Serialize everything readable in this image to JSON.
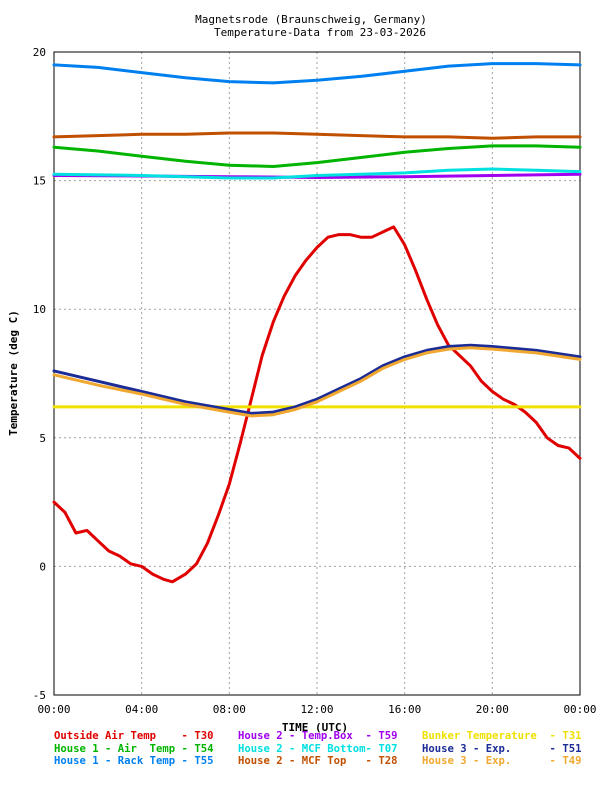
{
  "chart_data": {
    "type": "line",
    "title_lines": [
      "Magnetsrode (Braunschweig, Germany)",
      "Temperature-Data from 23-03-2026"
    ],
    "xlabel": "TIME (UTC)",
    "ylabel": "Temperature (deg C)",
    "xlim": [
      0,
      24
    ],
    "ylim": [
      -5,
      20
    ],
    "grid": true,
    "legend_position": "bottom",
    "x_ticks": [
      {
        "value": 0,
        "label": "00:00"
      },
      {
        "value": 4,
        "label": "04:00"
      },
      {
        "value": 8,
        "label": "08:00"
      },
      {
        "value": 12,
        "label": "12:00"
      },
      {
        "value": 16,
        "label": "16:00"
      },
      {
        "value": 20,
        "label": "20:00"
      },
      {
        "value": 24,
        "label": "00:00"
      }
    ],
    "y_ticks": [
      {
        "value": -5,
        "label": "-5"
      },
      {
        "value": 0,
        "label": "0"
      },
      {
        "value": 5,
        "label": "5"
      },
      {
        "value": 10,
        "label": "10"
      },
      {
        "value": 15,
        "label": "15"
      },
      {
        "value": 20,
        "label": "20"
      }
    ],
    "series": [
      {
        "name": "Outside Air Temp",
        "code": "T30",
        "color": "#e00000",
        "points": [
          [
            0,
            2.5
          ],
          [
            0.5,
            2.1
          ],
          [
            1,
            1.3
          ],
          [
            1.5,
            1.4
          ],
          [
            2,
            1.0
          ],
          [
            2.5,
            0.6
          ],
          [
            3,
            0.4
          ],
          [
            3.5,
            0.1
          ],
          [
            4,
            0.0
          ],
          [
            4.5,
            -0.3
          ],
          [
            5,
            -0.5
          ],
          [
            5.4,
            -0.6
          ],
          [
            6,
            -0.3
          ],
          [
            6.5,
            0.1
          ],
          [
            7,
            0.9
          ],
          [
            7.5,
            2.0
          ],
          [
            8,
            3.2
          ],
          [
            8.5,
            4.8
          ],
          [
            9,
            6.5
          ],
          [
            9.5,
            8.2
          ],
          [
            10,
            9.5
          ],
          [
            10.5,
            10.5
          ],
          [
            11,
            11.3
          ],
          [
            11.5,
            11.9
          ],
          [
            12,
            12.4
          ],
          [
            12.5,
            12.8
          ],
          [
            13,
            12.9
          ],
          [
            13.5,
            12.9
          ],
          [
            14,
            12.8
          ],
          [
            14.5,
            12.8
          ],
          [
            15,
            13.0
          ],
          [
            15.5,
            13.2
          ],
          [
            16,
            12.5
          ],
          [
            16.5,
            11.5
          ],
          [
            17,
            10.4
          ],
          [
            17.5,
            9.4
          ],
          [
            18,
            8.6
          ],
          [
            18.5,
            8.2
          ],
          [
            19,
            7.8
          ],
          [
            19.5,
            7.2
          ],
          [
            20,
            6.8
          ],
          [
            20.5,
            6.5
          ],
          [
            21,
            6.3
          ],
          [
            21.5,
            6.0
          ],
          [
            22,
            5.6
          ],
          [
            22.5,
            5.0
          ],
          [
            23,
            4.7
          ],
          [
            23.5,
            4.6
          ],
          [
            24,
            4.2
          ]
        ]
      },
      {
        "name": "House 1 - Air Temp",
        "code": "T54",
        "color": "#00b400",
        "points": [
          [
            0,
            16.3
          ],
          [
            2,
            16.15
          ],
          [
            4,
            15.95
          ],
          [
            6,
            15.75
          ],
          [
            8,
            15.6
          ],
          [
            10,
            15.55
          ],
          [
            12,
            15.7
          ],
          [
            14,
            15.9
          ],
          [
            16,
            16.1
          ],
          [
            18,
            16.25
          ],
          [
            20,
            16.35
          ],
          [
            22,
            16.35
          ],
          [
            24,
            16.3
          ]
        ]
      },
      {
        "name": "House 1 - Rack Temp",
        "code": "T55",
        "color": "#0080f0",
        "points": [
          [
            0,
            19.5
          ],
          [
            2,
            19.4
          ],
          [
            4,
            19.2
          ],
          [
            6,
            19.0
          ],
          [
            8,
            18.85
          ],
          [
            10,
            18.8
          ],
          [
            12,
            18.9
          ],
          [
            14,
            19.05
          ],
          [
            16,
            19.25
          ],
          [
            18,
            19.45
          ],
          [
            20,
            19.55
          ],
          [
            22,
            19.55
          ],
          [
            24,
            19.5
          ]
        ]
      },
      {
        "name": "House 2 - Temp.Box",
        "code": "T59",
        "color": "#a000f0",
        "points": [
          [
            0,
            15.2
          ],
          [
            4,
            15.18
          ],
          [
            8,
            15.15
          ],
          [
            12,
            15.12
          ],
          [
            16,
            15.15
          ],
          [
            20,
            15.2
          ],
          [
            24,
            15.25
          ]
        ]
      },
      {
        "name": "House 2 - MCF Bottom",
        "code": "T07",
        "color": "#00e0e0",
        "points": [
          [
            0,
            15.25
          ],
          [
            4,
            15.2
          ],
          [
            8,
            15.1
          ],
          [
            10,
            15.1
          ],
          [
            12,
            15.2
          ],
          [
            16,
            15.3
          ],
          [
            18,
            15.4
          ],
          [
            20,
            15.45
          ],
          [
            22,
            15.4
          ],
          [
            24,
            15.35
          ]
        ]
      },
      {
        "name": "House 2 - MCF Top",
        "code": "T28",
        "color": "#c05000",
        "points": [
          [
            0,
            16.7
          ],
          [
            2,
            16.75
          ],
          [
            4,
            16.8
          ],
          [
            6,
            16.8
          ],
          [
            8,
            16.85
          ],
          [
            10,
            16.85
          ],
          [
            12,
            16.8
          ],
          [
            14,
            16.75
          ],
          [
            16,
            16.7
          ],
          [
            18,
            16.7
          ],
          [
            20,
            16.65
          ],
          [
            22,
            16.7
          ],
          [
            24,
            16.7
          ]
        ]
      },
      {
        "name": "Bunker Temperature",
        "code": "T31",
        "color": "#f0e000",
        "points": [
          [
            0,
            6.2
          ],
          [
            6,
            6.2
          ],
          [
            12,
            6.2
          ],
          [
            18,
            6.2
          ],
          [
            24,
            6.2
          ]
        ]
      },
      {
        "name": "House 3 - Exp.",
        "code": "T51",
        "color": "#1c2c96",
        "points": [
          [
            0,
            7.6
          ],
          [
            2,
            7.2
          ],
          [
            4,
            6.8
          ],
          [
            6,
            6.4
          ],
          [
            8,
            6.1
          ],
          [
            9,
            5.95
          ],
          [
            10,
            6.0
          ],
          [
            11,
            6.2
          ],
          [
            12,
            6.5
          ],
          [
            13,
            6.9
          ],
          [
            14,
            7.3
          ],
          [
            15,
            7.8
          ],
          [
            16,
            8.15
          ],
          [
            17,
            8.4
          ],
          [
            18,
            8.55
          ],
          [
            19,
            8.6
          ],
          [
            20,
            8.55
          ],
          [
            22,
            8.4
          ],
          [
            24,
            8.15
          ]
        ]
      },
      {
        "name": "House 3 - Exp.",
        "code": "T49",
        "color": "#f0a830",
        "points": [
          [
            0,
            7.45
          ],
          [
            2,
            7.05
          ],
          [
            4,
            6.7
          ],
          [
            6,
            6.3
          ],
          [
            8,
            6.0
          ],
          [
            9,
            5.85
          ],
          [
            10,
            5.9
          ],
          [
            11,
            6.1
          ],
          [
            12,
            6.4
          ],
          [
            13,
            6.8
          ],
          [
            14,
            7.2
          ],
          [
            15,
            7.7
          ],
          [
            16,
            8.05
          ],
          [
            17,
            8.3
          ],
          [
            18,
            8.45
          ],
          [
            19,
            8.5
          ],
          [
            20,
            8.45
          ],
          [
            22,
            8.3
          ],
          [
            24,
            8.05
          ]
        ]
      }
    ],
    "legend": [
      {
        "label": "Outside Air Temp    - T30",
        "color": "#e00000"
      },
      {
        "label": "House 2 - Temp.Box  - T59",
        "color": "#a000f0"
      },
      {
        "label": "Bunker Temperature  - T31",
        "color": "#f0e000"
      },
      {
        "label": "House 1 - Air  Temp - T54",
        "color": "#00b400"
      },
      {
        "label": "House 2 - MCF Bottom- T07",
        "color": "#00e0e0"
      },
      {
        "label": "House 3 - Exp.      - T51",
        "color": "#1c2c96"
      },
      {
        "label": "House 1 - Rack Temp - T55",
        "color": "#0080f0"
      },
      {
        "label": "House 2 - MCF Top   - T28",
        "color": "#c05000"
      },
      {
        "label": "House 3 - Exp.      - T49",
        "color": "#f0a830"
      }
    ]
  }
}
